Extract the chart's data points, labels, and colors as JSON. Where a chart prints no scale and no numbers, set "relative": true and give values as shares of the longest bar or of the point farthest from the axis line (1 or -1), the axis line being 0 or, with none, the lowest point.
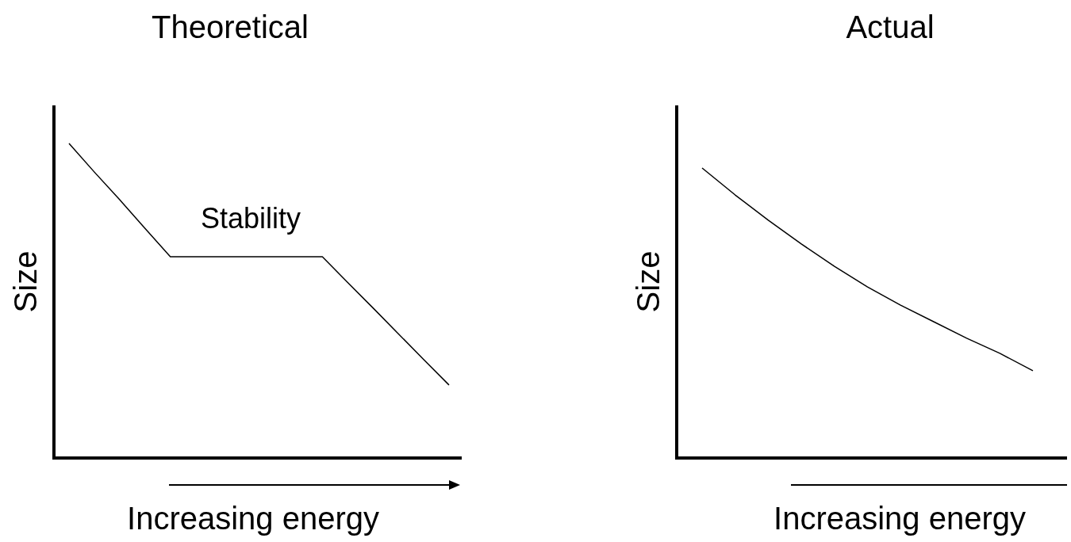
{
  "chart_data": [
    {
      "type": "line",
      "title": "Theoretical",
      "xlabel": "Increasing energy",
      "ylabel": "Size",
      "relative": true,
      "annotations": [
        "Stability"
      ],
      "categories": [
        null,
        null,
        null,
        null,
        null,
        null,
        null,
        null,
        null,
        null,
        null,
        null,
        null,
        null,
        null,
        null
      ],
      "series": [
        {
          "color": "#000000",
          "values": [
            1,
            0.909,
            0.821,
            0.73,
            0.64,
            0.64,
            0.64,
            0.64,
            0.64,
            0.64,
            0.64,
            0.558,
            0.477,
            0.395,
            0.313,
            0.232
          ]
        }
      ]
    },
    {
      "type": "line",
      "title": "Actual",
      "xlabel": "Increasing energy",
      "ylabel": "Size",
      "relative": true,
      "categories": [
        null,
        null,
        null,
        null,
        null,
        null,
        null,
        null,
        null,
        null,
        null
      ],
      "series": [
        {
          "color": "#000000",
          "values": [
            1,
            0.907,
            0.82,
            0.738,
            0.661,
            0.59,
            0.527,
            0.47,
            0.413,
            0.361,
            0.301
          ]
        }
      ]
    }
  ]
}
